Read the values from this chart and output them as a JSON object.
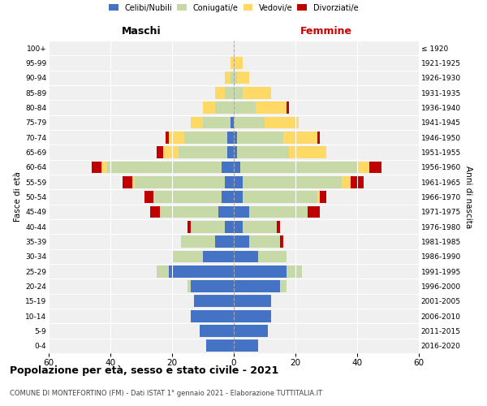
{
  "age_groups": [
    "0-4",
    "5-9",
    "10-14",
    "15-19",
    "20-24",
    "25-29",
    "30-34",
    "35-39",
    "40-44",
    "45-49",
    "50-54",
    "55-59",
    "60-64",
    "65-69",
    "70-74",
    "75-79",
    "80-84",
    "85-89",
    "90-94",
    "95-99",
    "100+"
  ],
  "birth_years": [
    "2016-2020",
    "2011-2015",
    "2006-2010",
    "2001-2005",
    "1996-2000",
    "1991-1995",
    "1986-1990",
    "1981-1985",
    "1976-1980",
    "1971-1975",
    "1966-1970",
    "1961-1965",
    "1956-1960",
    "1951-1955",
    "1946-1950",
    "1941-1945",
    "1936-1940",
    "1931-1935",
    "1926-1930",
    "1921-1925",
    "≤ 1920"
  ],
  "colors": {
    "celibi": "#4472C4",
    "coniugati": "#c8d9a8",
    "vedovi": "#ffd966",
    "divorziati": "#c00000"
  },
  "maschi": {
    "celibi": [
      9,
      11,
      14,
      13,
      14,
      21,
      10,
      6,
      3,
      5,
      4,
      3,
      4,
      2,
      2,
      1,
      0,
      0,
      0,
      0,
      0
    ],
    "coniugati": [
      0,
      0,
      0,
      0,
      1,
      4,
      10,
      11,
      11,
      19,
      22,
      29,
      37,
      16,
      14,
      9,
      6,
      3,
      1,
      0,
      0
    ],
    "vedovi": [
      0,
      0,
      0,
      0,
      0,
      0,
      0,
      0,
      0,
      0,
      0,
      1,
      2,
      5,
      5,
      4,
      4,
      3,
      2,
      1,
      0
    ],
    "divorziati": [
      0,
      0,
      0,
      0,
      0,
      0,
      0,
      0,
      1,
      3,
      3,
      3,
      3,
      2,
      1,
      0,
      0,
      0,
      0,
      0,
      0
    ]
  },
  "femmine": {
    "celibi": [
      8,
      11,
      12,
      12,
      15,
      17,
      8,
      5,
      3,
      5,
      3,
      3,
      2,
      1,
      1,
      0,
      0,
      0,
      0,
      0,
      0
    ],
    "coniugati": [
      0,
      0,
      0,
      0,
      2,
      5,
      9,
      10,
      11,
      19,
      24,
      32,
      38,
      17,
      15,
      10,
      7,
      3,
      1,
      0,
      0
    ],
    "vedovi": [
      0,
      0,
      0,
      0,
      0,
      0,
      0,
      0,
      0,
      0,
      1,
      3,
      4,
      12,
      11,
      11,
      10,
      9,
      4,
      3,
      0
    ],
    "divorziati": [
      0,
      0,
      0,
      0,
      0,
      0,
      0,
      1,
      1,
      4,
      2,
      4,
      4,
      0,
      1,
      0,
      1,
      0,
      0,
      0,
      0
    ]
  },
  "title": "Popolazione per età, sesso e stato civile - 2021",
  "subtitle": "COMUNE DI MONTEFORTINO (FM) - Dati ISTAT 1° gennaio 2021 - Elaborazione TUTTITALIA.IT",
  "ylabel_left": "Fasce di età",
  "ylabel_right": "Anni di nascita",
  "xlabel_left": "Maschi",
  "xlabel_right": "Femmine",
  "xlim": 60,
  "background_color": "#f0f0f0",
  "legend_labels": [
    "Celibi/Nubili",
    "Coniugati/e",
    "Vedovi/e",
    "Divorziati/e"
  ]
}
